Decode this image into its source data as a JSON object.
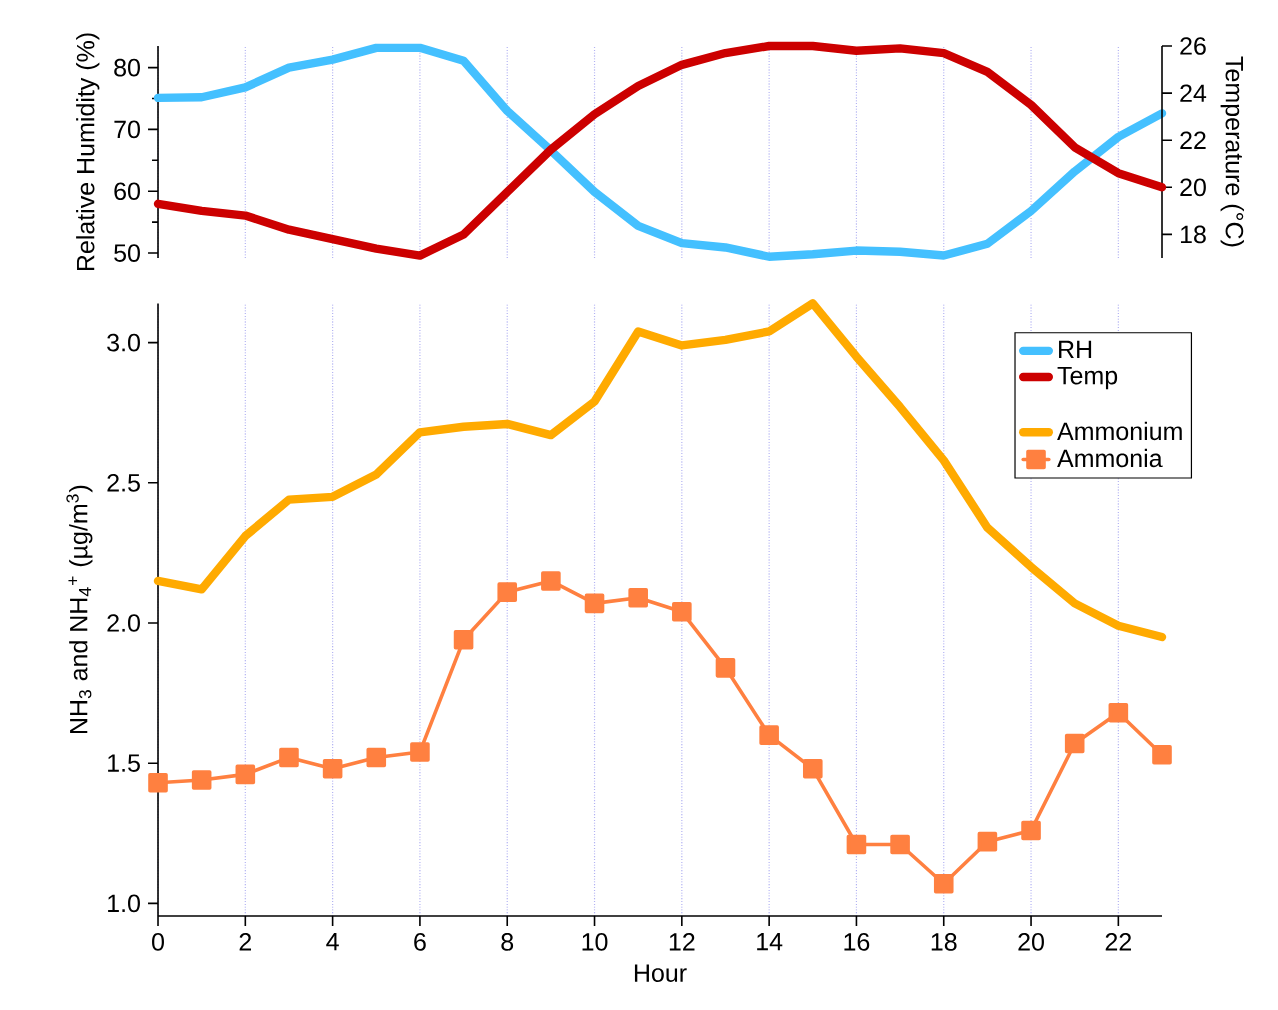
{
  "chart_data": [
    {
      "type": "line",
      "ylabel": "Relative Humidity (%)",
      "y2label": "Temperature (°C)",
      "x": [
        0,
        1,
        2,
        3,
        4,
        5,
        6,
        7,
        8,
        9,
        10,
        11,
        12,
        13,
        14,
        15,
        16,
        17,
        18,
        19,
        20,
        21,
        22,
        23
      ],
      "xlim": [
        0,
        23
      ],
      "xticks": [
        0,
        2,
        4,
        6,
        8,
        10,
        12,
        14,
        16,
        18,
        20,
        22
      ],
      "ylim": [
        49.2,
        83.5
      ],
      "yticks": [
        50,
        {
          "value": 55,
          "label": null
        },
        60,
        {
          "value": 65,
          "label": null
        },
        70,
        {
          "value": 75,
          "label": null
        },
        80
      ],
      "y2lim": [
        17.0,
        26
      ],
      "y2ticks": [
        18,
        20,
        22,
        24,
        26
      ],
      "grid": "x",
      "tick_labels": "y",
      "series": [
        {
          "name": "RH",
          "color": "#44c0ff",
          "axis": "y",
          "values": [
            75.1,
            75.2,
            76.8,
            80.0,
            81.3,
            83.2,
            83.2,
            81.1,
            73.0,
            66.6,
            59.9,
            54.4,
            51.6,
            50.9,
            49.4,
            49.8,
            50.4,
            50.2,
            49.6,
            51.5,
            56.8,
            63.2,
            68.8,
            72.6
          ]
        },
        {
          "name": "Temp",
          "color": "#cc0000",
          "axis": "y2",
          "values": [
            19.3,
            19.0,
            18.8,
            18.2,
            17.8,
            17.4,
            17.1,
            18.0,
            19.8,
            21.6,
            23.1,
            24.3,
            25.2,
            25.7,
            26.0,
            26.0,
            25.8,
            25.9,
            25.7,
            24.9,
            23.5,
            21.7,
            20.6,
            20.0
          ]
        }
      ]
    },
    {
      "type": "line",
      "xlabel": "Hour",
      "ylabel": "NH$_{3}$ and NH$_{4}$$^{+}$ (µg/m$^{3}$)",
      "x": [
        0,
        1,
        2,
        3,
        4,
        5,
        6,
        7,
        8,
        9,
        10,
        11,
        12,
        13,
        14,
        15,
        16,
        17,
        18,
        19,
        20,
        21,
        22,
        23
      ],
      "xlim": [
        0,
        23
      ],
      "xticks": [
        0,
        2,
        4,
        6,
        8,
        10,
        12,
        14,
        16,
        18,
        20,
        22
      ],
      "ylim": [
        0.955,
        3.14
      ],
      "yticks": [
        {
          "value": 1,
          "label": "1.0"
        },
        1.5,
        {
          "value": 2,
          "label": "2.0"
        },
        2.5,
        {
          "value": 3,
          "label": "3.0"
        }
      ],
      "grid": "x",
      "legend": "top right",
      "series": [
        {
          "name": "Ammonium",
          "color": "#ffaa00",
          "marker": "none",
          "values": [
            2.15,
            2.12,
            2.31,
            2.44,
            2.45,
            2.53,
            2.68,
            2.7,
            2.71,
            2.67,
            2.79,
            3.04,
            2.99,
            3.01,
            3.04,
            3.14,
            2.95,
            2.77,
            2.58,
            2.34,
            2.2,
            2.07,
            1.99,
            1.95
          ]
        },
        {
          "name": "Ammonia",
          "color": "#ff8040",
          "marker": "square",
          "values": [
            1.43,
            1.44,
            1.46,
            1.52,
            1.48,
            1.52,
            1.54,
            1.94,
            2.11,
            2.15,
            2.07,
            2.09,
            2.04,
            1.84,
            1.6,
            1.48,
            1.21,
            1.21,
            1.07,
            1.22,
            1.26,
            1.57,
            1.68,
            1.53
          ]
        }
      ]
    }
  ]
}
